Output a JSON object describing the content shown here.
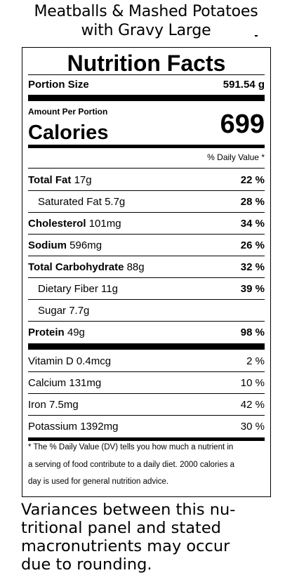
{
  "title": {
    "line1": "Meatballs & Mashed Potatoes",
    "line2": "with Gravy Large"
  },
  "panel": {
    "heading": "Nutrition Facts",
    "portion_label": "Portion Size",
    "portion_value": "591.54 g",
    "amount_per": "Amount Per Portion",
    "calories_label": "Calories",
    "calories_value": "699",
    "dv_header": "% Daily Value *",
    "nutrients": [
      {
        "name": "Total Fat",
        "amount": "17g",
        "dv": "22 %"
      },
      {
        "name": "Saturated Fat",
        "amount": "5.7g",
        "dv": "28 %"
      },
      {
        "name": "Cholesterol",
        "amount": "101mg",
        "dv": "34 %"
      },
      {
        "name": "Sodium",
        "amount": "596mg",
        "dv": "26 %"
      },
      {
        "name": "Total Carbohydrate",
        "amount": "88g",
        "dv": "32 %"
      },
      {
        "name": "Dietary Fiber",
        "amount": "11g",
        "dv": "39 %"
      },
      {
        "name": "Sugar",
        "amount": "7.7g",
        "dv": ""
      },
      {
        "name": "Protein",
        "amount": "49g",
        "dv": "98 %"
      }
    ],
    "vitamins": [
      {
        "name": "Vitamin D",
        "amount": "0.4mcg",
        "dv": "2 %"
      },
      {
        "name": "Calcium",
        "amount": "131mg",
        "dv": "10 %"
      },
      {
        "name": "Iron",
        "amount": "7.5mg",
        "dv": "42 %"
      },
      {
        "name": "Potassium",
        "amount": "1392mg",
        "dv": "30 %"
      }
    ],
    "footnote": {
      "line1": "* The % Daily Value (DV) tells you how much a nutrient in",
      "line2": "a serving of food contribute to a daily diet. 2000 calories a",
      "line3": "day is used for general nutrition advice."
    }
  },
  "variance_note": {
    "line1": "Variances between this nu-",
    "line2": "tritional panel and stated",
    "line3": "macronutrients may occur",
    "line4": "due to rounding."
  }
}
